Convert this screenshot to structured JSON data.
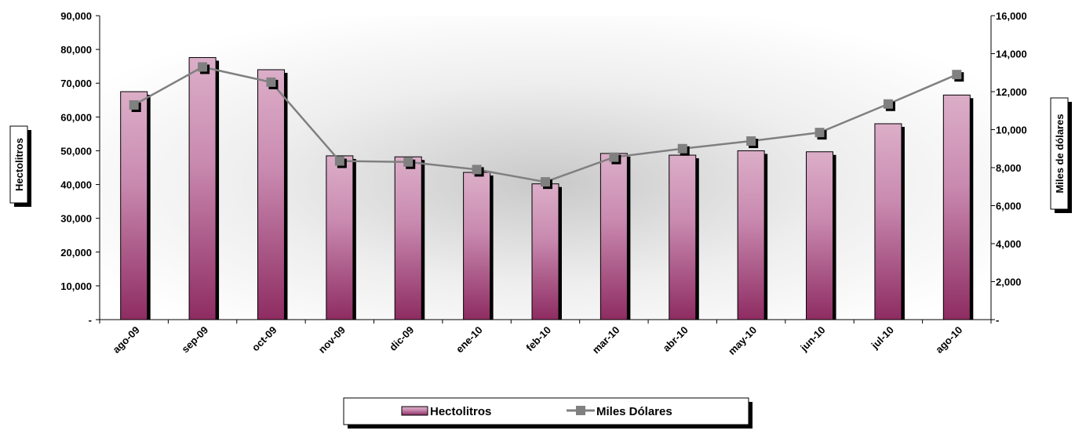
{
  "chart_data": {
    "type": "bar",
    "categories": [
      "ago-09",
      "sep-09",
      "oct-09",
      "nov-09",
      "dic-09",
      "ene-10",
      "feb-10",
      "mar-10",
      "abr-10",
      "may-10",
      "jun-10",
      "jul-10",
      "ago-10"
    ],
    "series": [
      {
        "name": "Hectolitros",
        "type": "bar",
        "axis": "left",
        "values": [
          67500,
          77600,
          74000,
          48500,
          48200,
          43600,
          40200,
          49200,
          48700,
          50000,
          49700,
          58000,
          66500
        ]
      },
      {
        "name": "Miles Dólares",
        "type": "line",
        "axis": "right",
        "values": [
          11300,
          13300,
          12500,
          8350,
          8300,
          7900,
          7250,
          8550,
          9000,
          9400,
          9850,
          11350,
          12900
        ]
      }
    ],
    "ylabel": "Hectolitros",
    "y2label": "Miles de dólares",
    "ylim": [
      0,
      90000
    ],
    "y2lim": [
      0,
      16000
    ],
    "yticks": [
      "-",
      "10,000",
      "20,000",
      "30,000",
      "40,000",
      "50,000",
      "60,000",
      "70,000",
      "80,000",
      "90,000"
    ],
    "y2ticks": [
      "-",
      "2,000",
      "4,000",
      "6,000",
      "8,000",
      "10,000",
      "12,000",
      "14,000",
      "16,000"
    ],
    "grid": false,
    "legend": {
      "position": "bottom",
      "entries": [
        "Hectolitros",
        "Miles Dólares"
      ]
    },
    "colors": {
      "bar_top": "#dcaec8",
      "bar_bottom": "#8e2c62",
      "line": "#808080",
      "marker": "#808080"
    }
  }
}
